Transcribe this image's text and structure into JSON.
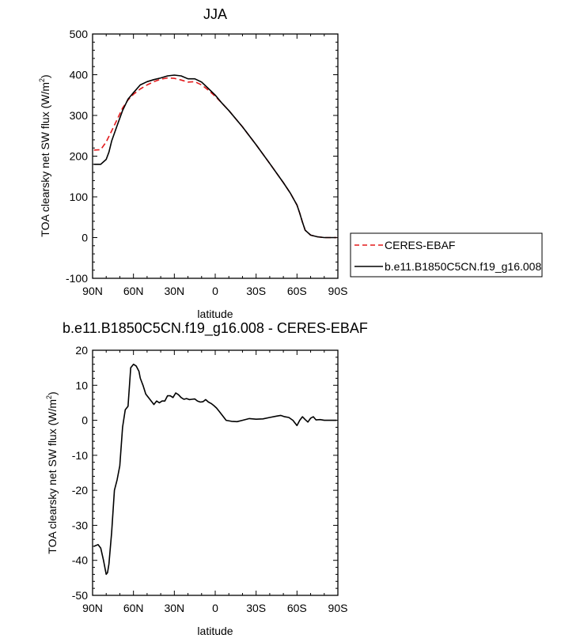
{
  "chart_data": [
    {
      "type": "line",
      "title": "JJA",
      "xlabel": "latitude",
      "ylabel": "TOA clearsky net SW flux (W/m",
      "ylabel_sup": "2",
      "ylabel_close": ")",
      "xlim": [
        90,
        -90
      ],
      "ylim": [
        -100,
        500
      ],
      "xticks": [
        90,
        60,
        30,
        0,
        -30,
        -60,
        -90
      ],
      "xtick_labels": [
        "90N",
        "60N",
        "30N",
        "0",
        "30S",
        "60S",
        "90S"
      ],
      "yticks": [
        -100,
        0,
        100,
        200,
        300,
        400,
        500
      ],
      "ytick_labels": [
        "-100",
        "0",
        "100",
        "200",
        "300",
        "400",
        "500"
      ],
      "legend_position": "right",
      "series": [
        {
          "name": "CERES-EBAF",
          "color": "#e31a1c",
          "style": "dashed",
          "x": [
            89,
            84,
            80,
            76,
            72,
            68,
            64,
            60,
            55,
            50,
            45,
            40,
            35,
            30,
            25,
            20,
            15,
            10,
            5,
            0,
            -5,
            -10,
            -20,
            -30,
            -40,
            -50,
            -55,
            -60,
            -62,
            -64,
            -66,
            -70,
            -75,
            -80,
            -85,
            -89
          ],
          "y": [
            215,
            216,
            235,
            262,
            290,
            318,
            338,
            352,
            365,
            375,
            383,
            389,
            392,
            391,
            387,
            382,
            383,
            375,
            362,
            347,
            330,
            312,
            272,
            228,
            182,
            135,
            110,
            80,
            60,
            38,
            18,
            6,
            2,
            0,
            0,
            0
          ]
        },
        {
          "name": "b.e11.B1850C5CN.f19_g16.008",
          "color": "#000000",
          "style": "solid",
          "x": [
            89,
            84,
            80,
            78,
            76,
            72,
            68,
            64,
            60,
            55,
            50,
            45,
            40,
            35,
            30,
            25,
            20,
            15,
            10,
            5,
            0,
            -5,
            -10,
            -20,
            -30,
            -40,
            -50,
            -55,
            -60,
            -62,
            -64,
            -66,
            -70,
            -75,
            -80,
            -85,
            -89
          ],
          "y": [
            180,
            180,
            192,
            210,
            237,
            275,
            312,
            340,
            356,
            375,
            383,
            388,
            392,
            397,
            399,
            397,
            390,
            390,
            382,
            366,
            350,
            330,
            312,
            272,
            228,
            182,
            135,
            110,
            80,
            60,
            38,
            18,
            6,
            2,
            0,
            0,
            0
          ]
        }
      ]
    },
    {
      "type": "line",
      "title": "b.e11.B1850C5CN.f19_g16.008 - CERES-EBAF",
      "xlabel": "latitude",
      "ylabel": "TOA clearsky net SW flux (W/m",
      "ylabel_sup": "2",
      "ylabel_close": ")",
      "xlim": [
        90,
        -90
      ],
      "ylim": [
        -50,
        20
      ],
      "xticks": [
        90,
        60,
        30,
        0,
        -30,
        -60,
        -90
      ],
      "xtick_labels": [
        "90N",
        "60N",
        "30N",
        "0",
        "30S",
        "60S",
        "90S"
      ],
      "yticks": [
        -50,
        -40,
        -30,
        -20,
        -10,
        0,
        10,
        20
      ],
      "ytick_labels": [
        "-50",
        "-40",
        "-30",
        "-20",
        "-10",
        "0",
        "10",
        "20"
      ],
      "series": [
        {
          "color": "#000000",
          "style": "solid",
          "x": [
            89,
            86,
            84,
            82,
            80,
            79,
            78,
            76,
            74,
            72,
            70,
            68,
            66,
            64,
            62,
            60,
            58,
            56,
            55,
            53,
            51,
            49,
            47,
            45,
            43,
            41,
            39,
            37,
            35,
            33,
            31,
            29,
            27,
            25,
            23,
            21,
            19,
            17,
            15,
            13,
            11,
            9,
            7,
            5,
            3,
            1,
            -1,
            -3,
            -5,
            -8,
            -12,
            -16,
            -20,
            -25,
            -30,
            -35,
            -40,
            -45,
            -48,
            -51,
            -54,
            -57,
            -60,
            -62,
            -64,
            -66,
            -68,
            -70,
            -72,
            -74,
            -77,
            -80,
            -83,
            -86,
            -89
          ],
          "y": [
            -36,
            -35.5,
            -36.5,
            -40,
            -44,
            -43.5,
            -41,
            -32,
            -20,
            -17,
            -13,
            -2,
            3,
            4,
            15,
            16,
            15.5,
            14,
            12,
            10,
            7.5,
            6.5,
            5.5,
            4.5,
            5.5,
            5,
            5.5,
            5.5,
            7,
            7,
            6.5,
            7.8,
            7.3,
            6.5,
            6,
            6.2,
            5.9,
            6,
            6.1,
            5.5,
            5.2,
            5.3,
            5.9,
            5.2,
            4.8,
            4.2,
            3.5,
            2.5,
            1.5,
            0,
            -0.3,
            -0.4,
            0,
            0.5,
            0.3,
            0.4,
            0.8,
            1.2,
            1.4,
            1,
            0.8,
            0,
            -1.5,
            0,
            1,
            0.2,
            -0.5,
            0.6,
            1,
            0.1,
            0.2,
            0,
            0,
            0,
            0
          ]
        }
      ]
    }
  ]
}
